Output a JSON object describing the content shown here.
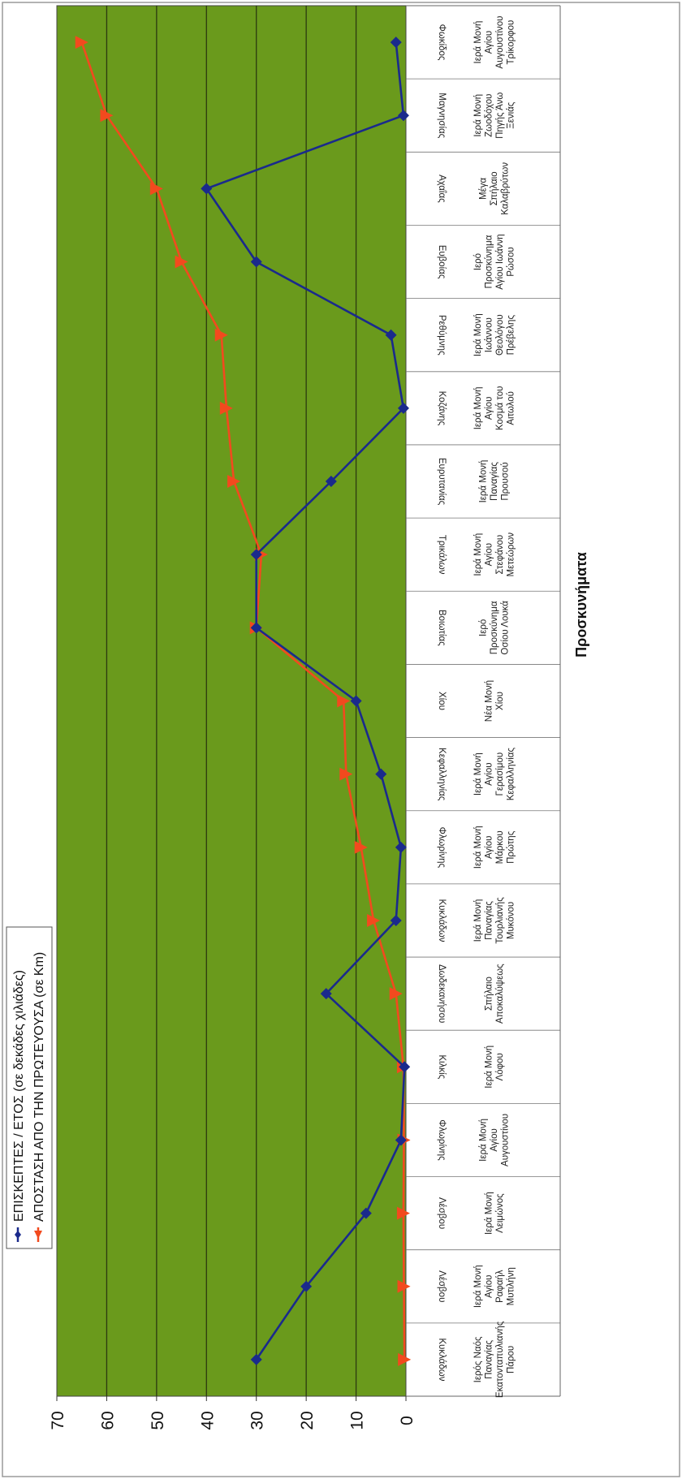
{
  "chart_data": {
    "type": "line",
    "orientation": "rotated-90-clockwise",
    "xlabel": "Προσκυνήματα",
    "ylabel": "",
    "ylim": [
      0,
      70
    ],
    "yticks": [
      0,
      10,
      20,
      30,
      40,
      50,
      60,
      70
    ],
    "grid": true,
    "legend_position": "top-left",
    "plot_background": "#6a9a1c",
    "categories": [
      {
        "region": "Κυκλάδων",
        "name": [
          "Ιερός Ναός",
          "Παναγίας",
          "Εκατονταπυλιανής",
          "Πάρου"
        ]
      },
      {
        "region": "Λέσβου",
        "name": [
          "Ιερά Μονή",
          "Αγίου",
          "Ραφαήλ",
          "Μυτιλήνη"
        ]
      },
      {
        "region": "Λέσβου",
        "name": [
          "Ιερά Μονή",
          "Λειμώνος"
        ]
      },
      {
        "region": "Φλωρίνης",
        "name": [
          "Ιερά Μονή",
          "Αγίου",
          "Αυγουστίνου"
        ]
      },
      {
        "region": "Κιλκίς",
        "name": [
          "Ιερά Μονή",
          "Λόφου"
        ]
      },
      {
        "region": "Δωδεκανήσου",
        "name": [
          "Σπήλαιο",
          "Αποκαλύψεως"
        ]
      },
      {
        "region": "Κυκλάδων",
        "name": [
          "Ιερά Μονή",
          "Παναγίας",
          "Τουρλιανής",
          "Μυκόνου"
        ]
      },
      {
        "region": "Φλωρίνης",
        "name": [
          "Ιερά Μονή",
          "Αγίου",
          "Μάρκου",
          "Πρώτης"
        ]
      },
      {
        "region": "Κεφαλληνίας",
        "name": [
          "Ιερά Μονή",
          "Αγίου",
          "Γερασίμου",
          "Κεφαλληνίας"
        ]
      },
      {
        "region": "Χίου",
        "name": [
          "Νέα Μονή",
          "Χίου"
        ]
      },
      {
        "region": "Βοιωτίας",
        "name": [
          "Ιερό",
          "Προσκύνημα",
          "Οσίου Λουκά"
        ]
      },
      {
        "region": "Τρικάλων",
        "name": [
          "Ιερά Μονή",
          "Αγίου",
          "Στεφάνου",
          "Μετεώρων"
        ]
      },
      {
        "region": "Ευρυτανίας",
        "name": [
          "Ιερά Μονή",
          "Παναγίας",
          "Προυσού"
        ]
      },
      {
        "region": "Κοζάνης",
        "name": [
          "Ιερά Μονή",
          "Αγίου",
          "Κοσμά του",
          "Αιτωλού"
        ]
      },
      {
        "region": "Ρεθύμνης",
        "name": [
          "Ιερά Μονή",
          "Ιωάννου",
          "Θεολόγου",
          "Πρέβελης"
        ]
      },
      {
        "region": "Ευβοίας",
        "name": [
          "Ιερό",
          "Προσκύνημα",
          "Αγίου Ιωάννη",
          "Ρώσου"
        ]
      },
      {
        "region": "Αχαΐας",
        "name": [
          "Μέγα",
          "Σπήλαιο",
          "Καλαβρύτων"
        ]
      },
      {
        "region": "Μαγνησίας",
        "name": [
          "Ιερά Μονή",
          "Ζωοδόχου",
          "Πηγής Άνω",
          "Ξενιάς"
        ]
      },
      {
        "region": "Φωκίδος",
        "name": [
          "Ιερά Μονή",
          "Αγίου",
          "Αυγουστίνου",
          "Τρίκορφου"
        ]
      }
    ],
    "series": [
      {
        "name": "ΕΠΙΣΚΕΠΤΕΣ / ΕΤΟΣ (σε δεκάδες χιλιάδες)",
        "color": "#1a2a8c",
        "marker": "diamond",
        "values": [
          30,
          20,
          8,
          1,
          0.3,
          16,
          2,
          1,
          5,
          10,
          30,
          30,
          15,
          0.5,
          3,
          30,
          40,
          0.5,
          2
        ]
      },
      {
        "name": "ΑΠΟΣΤΑΣΗ ΑΠΟ ΤΗΝ ΠΡΩΤΕΥΟΥΣΑ (σε Km)",
        "color": "#f24a1e",
        "marker": "triangle",
        "values": [
          0.3,
          0.4,
          0.5,
          0.4,
          0.5,
          2,
          6.5,
          9,
          12,
          12.5,
          30,
          29,
          34.5,
          36,
          37,
          45,
          50,
          60,
          65
        ]
      }
    ]
  }
}
